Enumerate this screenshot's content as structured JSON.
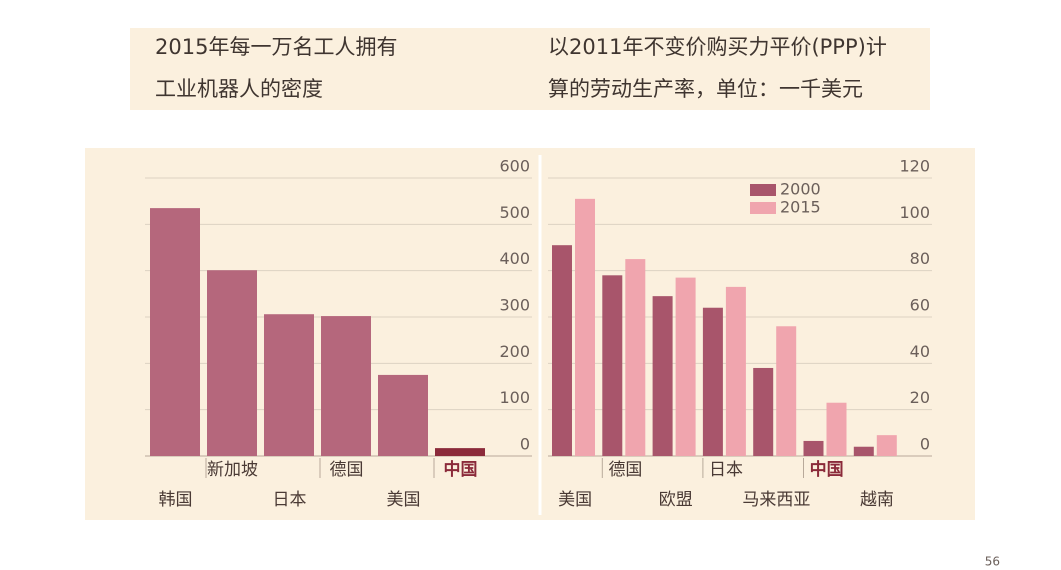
{
  "page_number": "56",
  "chart_data": [
    {
      "type": "bar",
      "title": [
        "2015年每一万名工人拥有",
        "工业机器人的密度"
      ],
      "categories": [
        "韩国",
        "新加坡",
        "日本",
        "德国",
        "美国",
        "中国"
      ],
      "values": [
        535,
        401,
        306,
        302,
        175,
        17
      ],
      "color": "#b5677c",
      "highlight": {
        "index": 5,
        "color": "#8b2a3a"
      },
      "ylim": [
        0,
        600
      ],
      "yticks": [
        0,
        100,
        200,
        300,
        400,
        500,
        600
      ],
      "grid": true
    },
    {
      "type": "grouped-bar",
      "title": [
        "以2011年不变价购买力平价(PPP)计",
        "算的劳动生产率，单位：一千美元"
      ],
      "categories": [
        "美国",
        "德国",
        "欧盟",
        "日本",
        "马来西亚",
        "中国",
        "越南"
      ],
      "series": [
        {
          "name": "2000",
          "color": "#a8556b",
          "values": [
            91,
            78,
            69,
            64,
            38,
            6.5,
            4
          ]
        },
        {
          "name": "2015",
          "color": "#f0a5ae",
          "values": [
            111,
            85,
            77,
            73,
            56,
            23,
            9
          ]
        }
      ],
      "highlight": {
        "index": 5,
        "color": "#8b2a3a"
      },
      "legend": "top-center",
      "ylim": [
        0,
        120
      ],
      "yticks": [
        0,
        20,
        40,
        60,
        80,
        100,
        120
      ],
      "grid": true
    }
  ]
}
